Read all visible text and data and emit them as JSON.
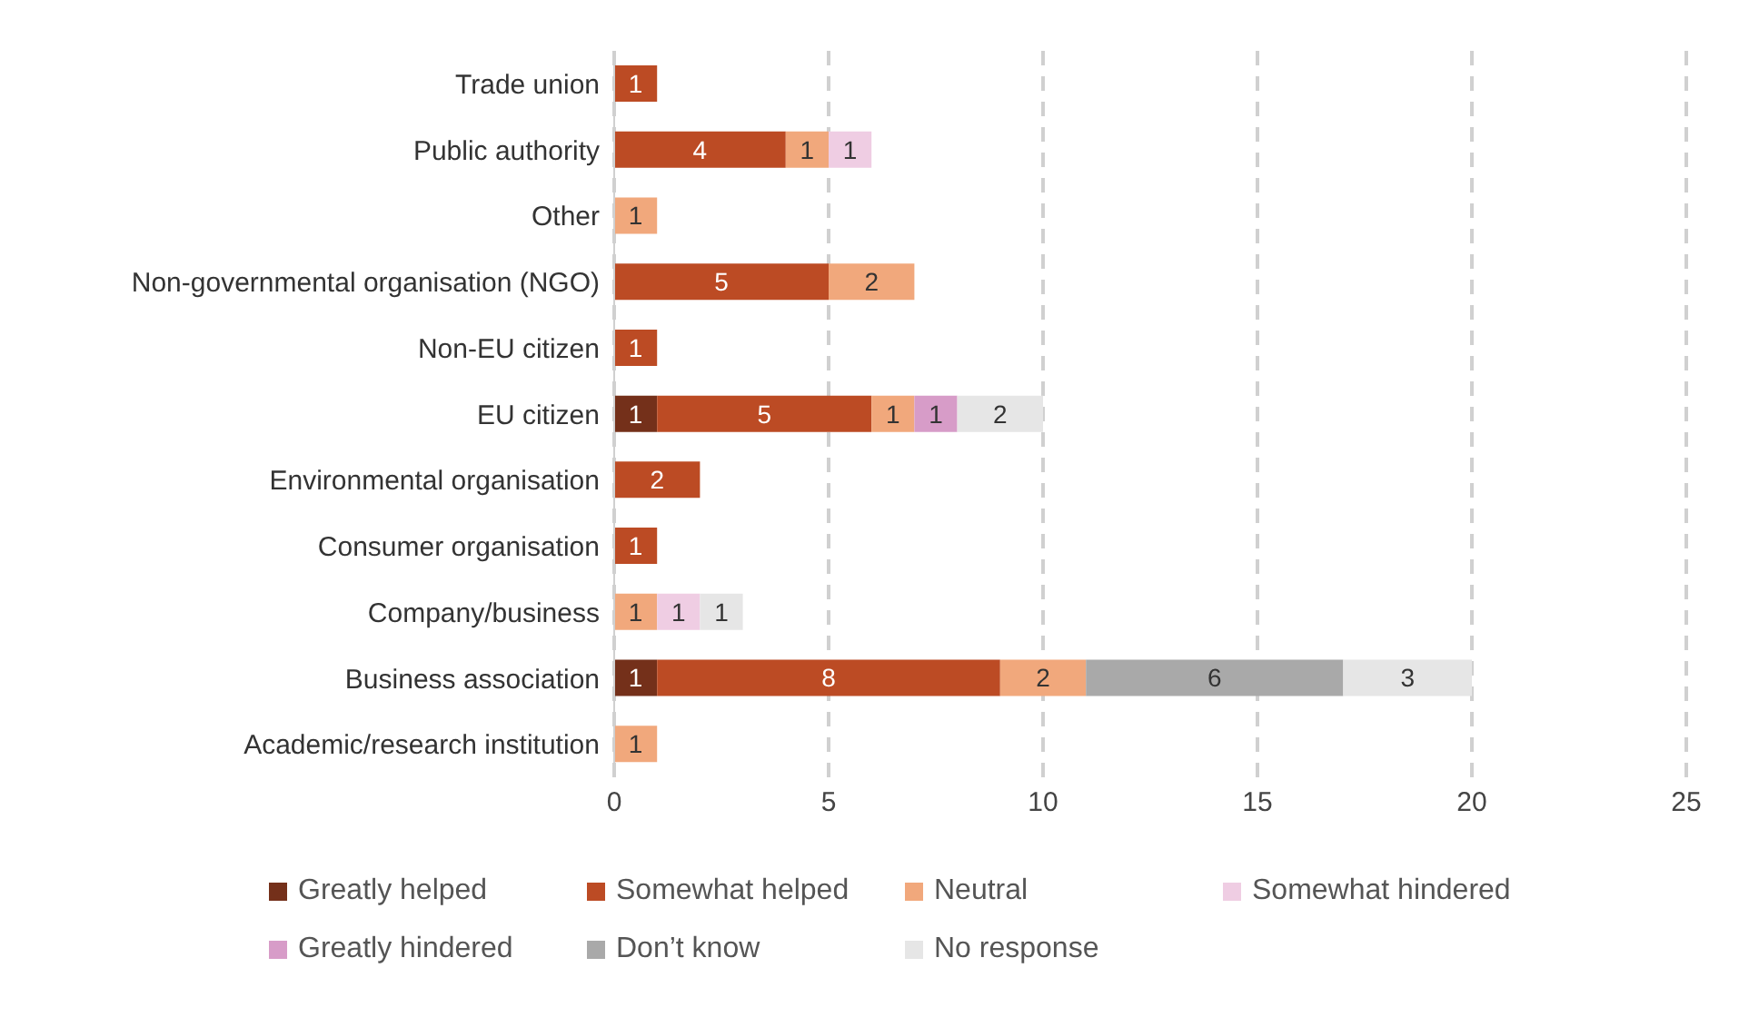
{
  "chart_data": {
    "type": "bar",
    "orientation": "horizontal",
    "stacked": true,
    "data_labels": true,
    "grid": "x",
    "legend": "bottom",
    "categories": [
      "Trade union",
      "Public authority",
      "Other",
      "Non-governmental organisation (NGO)",
      "Non-EU citizen",
      "EU citizen",
      "Environmental organisation",
      "Consumer organisation",
      "Company/business",
      "Business association",
      "Academic/research institution"
    ],
    "xlim": [
      0,
      25
    ],
    "xticks": [
      0,
      5,
      10,
      15,
      20,
      25
    ],
    "series": [
      {
        "name": "Greatly helped",
        "color": "#74301a",
        "values": [
          null,
          null,
          null,
          null,
          null,
          1,
          null,
          null,
          null,
          1,
          null
        ]
      },
      {
        "name": "Somewhat helped",
        "color": "#bc4b24",
        "values": [
          1,
          4,
          null,
          5,
          1,
          5,
          2,
          1,
          null,
          8,
          null
        ]
      },
      {
        "name": "Neutral",
        "color": "#f1a87c",
        "values": [
          null,
          1,
          1,
          2,
          null,
          1,
          null,
          null,
          1,
          2,
          1
        ]
      },
      {
        "name": "Somewhat hindered",
        "color": "#efcde3",
        "values": [
          null,
          1,
          null,
          null,
          null,
          null,
          null,
          null,
          1,
          null,
          null
        ]
      },
      {
        "name": "Greatly hindered",
        "color": "#d79cc8",
        "values": [
          null,
          null,
          null,
          null,
          null,
          1,
          null,
          null,
          null,
          null,
          null
        ]
      },
      {
        "name": "Don’t know",
        "color": "#a9a9a9",
        "values": [
          null,
          null,
          null,
          null,
          null,
          null,
          null,
          null,
          null,
          6,
          null
        ]
      },
      {
        "name": "No response",
        "color": "#e6e6e6",
        "values": [
          null,
          null,
          null,
          null,
          null,
          2,
          null,
          null,
          1,
          3,
          null
        ]
      }
    ]
  }
}
